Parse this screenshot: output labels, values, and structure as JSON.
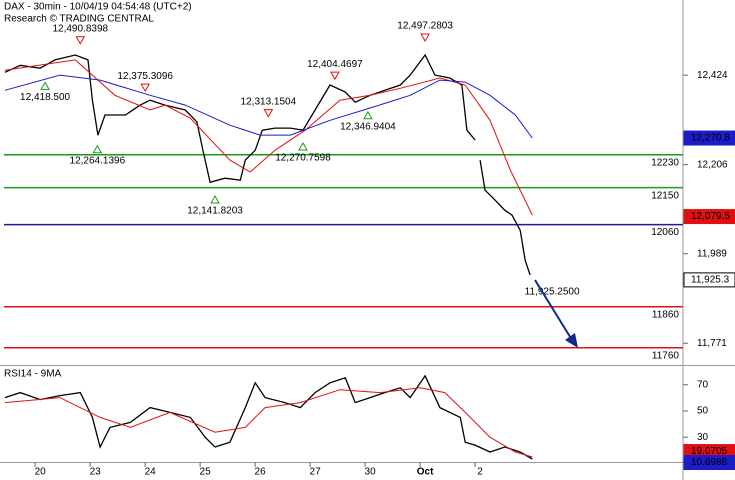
{
  "chart_data": [
    {
      "type": "line",
      "title": "DAX - 30min - 10/04/19 04:54:48 (UTC+2)",
      "subtitle": "Research © TRADING CENTRAL",
      "xlim": [
        -0.73,
        11.69
      ],
      "ylim": [
        11718,
        12607
      ],
      "yticks": [
        {
          "value": 12424,
          "label": "12,424"
        },
        {
          "value": 12206,
          "label": "12,206"
        },
        {
          "value": 11989,
          "label": "11,989"
        },
        {
          "value": 11771,
          "label": "11,771"
        }
      ],
      "series": [
        {
          "color": "#000000",
          "x": [
            -0.64,
            -0.36,
            0,
            0.27,
            0.64,
            0.87,
            0.95,
            1.05,
            1.18,
            1.55,
            1.82,
            2,
            2.27,
            2.64,
            2.85,
            2.96,
            3.09,
            3.36,
            3.64,
            3.73,
            3.91,
            4.04,
            4.27,
            4.55,
            4.78,
            5,
            5.27,
            5.55,
            5.73,
            6,
            6.27,
            6.55,
            6.73,
            7,
            7.18,
            7.45,
            7.67,
            7.76,
            7.91,
            7.95,
            8,
            8.09,
            8.27,
            8.45,
            8.58,
            8.73,
            8.82,
            8.91
          ],
          "values": [
            12431,
            12448,
            12441,
            12461,
            12473,
            12461,
            12363,
            12278,
            12327,
            12327,
            12351,
            12363,
            12351,
            12339,
            12310,
            12241,
            12163,
            12173,
            12168,
            12217,
            12241,
            12290,
            12295,
            12295,
            12290,
            12339,
            12400,
            12383,
            12358,
            12375,
            12387,
            12400,
            12424,
            12473,
            12424,
            12417,
            12400,
            12290,
            12266,
            null,
            12217,
            12144,
            12120,
            12095,
            12083,
            12046,
            11973,
            11937
          ]
        },
        {
          "color": "#e01010",
          "x": [
            -0.64,
            0.64,
            1.36,
            2,
            2.27,
            2.73,
            3.45,
            3.82,
            4.27,
            4.82,
            5.45,
            6,
            6.55,
            7.27,
            7.73,
            8.18,
            8.55,
            8.95
          ],
          "values": [
            12436,
            12461,
            12375,
            12339,
            12351,
            12319,
            12217,
            12188,
            12241,
            12290,
            12363,
            12375,
            12392,
            12417,
            12400,
            12314,
            12193,
            12083
          ]
        },
        {
          "color": "#1c1cc8",
          "x": [
            -0.64,
            0.36,
            1.09,
            2,
            2.64,
            3.45,
            4,
            4.55,
            5.27,
            6,
            6.73,
            7.27,
            7.73,
            8.18,
            8.64,
            8.95
          ],
          "values": [
            12387,
            12424,
            12412,
            12375,
            12351,
            12302,
            12278,
            12278,
            12314,
            12344,
            12375,
            12412,
            12407,
            12375,
            12327,
            12271
          ]
        }
      ],
      "levels": [
        {
          "value": 12230,
          "color": "#1a9a1a"
        },
        {
          "value": 12150,
          "color": "#1a9a1a"
        },
        {
          "value": 12060,
          "color": "#1c1c9c"
        },
        {
          "value": 11860,
          "color": "#e01010"
        },
        {
          "value": 11760,
          "color": "#e01010"
        }
      ],
      "annotations": [
        {
          "label": "12,490.8398",
          "x": 0.73,
          "value": 12490.8398,
          "marker": "high"
        },
        {
          "label": "12,418.500",
          "x": 0.09,
          "value": 12418.5,
          "marker": "low"
        },
        {
          "label": "12,375.3096",
          "x": 1.91,
          "value": 12375.3096,
          "marker": "high"
        },
        {
          "label": "12,264.1396",
          "x": 1.04,
          "value": 12264.1396,
          "marker": "low"
        },
        {
          "label": "12,313.1504",
          "x": 4.15,
          "value": 12313.1504,
          "marker": "high"
        },
        {
          "label": "12,141.8203",
          "x": 3.18,
          "value": 12141.8203,
          "marker": "low"
        },
        {
          "label": "12,270.7598",
          "x": 4.78,
          "value": 12270.7598,
          "marker": "low"
        },
        {
          "label": "12,404.4697",
          "x": 5.36,
          "value": 12404.4697,
          "marker": "high"
        },
        {
          "label": "12,346.9404",
          "x": 5.96,
          "value": 12346.9404,
          "marker": "low"
        },
        {
          "label": "12,497.2803",
          "x": 7,
          "value": 12497.2803,
          "marker": "high"
        },
        {
          "label": "11,925.2500",
          "x": 9.31,
          "value": 11925.25,
          "marker": "none"
        }
      ],
      "price_tags": [
        {
          "value": 12270.8,
          "label": "12,270.8",
          "color": "#1c1cc8"
        },
        {
          "value": 12079.5,
          "label": "12,079.5",
          "color": "#e01010"
        },
        {
          "value": 11925.3,
          "label": "11,925.3",
          "color": "#000000"
        }
      ]
    },
    {
      "type": "line",
      "title": "RSI14 - 9MA",
      "xlim": [
        -0.73,
        11.69
      ],
      "ylim": [
        11.1,
        84.3
      ],
      "yticks": [
        70,
        50,
        30
      ],
      "xticks": [
        {
          "value": 0,
          "label": "20"
        },
        {
          "value": 1,
          "label": "23"
        },
        {
          "value": 2,
          "label": "24"
        },
        {
          "value": 3,
          "label": "25"
        },
        {
          "value": 4,
          "label": "26"
        },
        {
          "value": 5,
          "label": "27"
        },
        {
          "value": 6,
          "label": "30"
        },
        {
          "value": 7,
          "label": "Oct"
        },
        {
          "value": 8,
          "label": "2"
        }
      ],
      "series": [
        {
          "color": "#000000",
          "x": [
            -0.64,
            -0.36,
            0,
            0.36,
            0.73,
            0.95,
            1.09,
            1.27,
            1.64,
            2,
            2.36,
            2.73,
            3,
            3.18,
            3.45,
            3.73,
            3.91,
            4.09,
            4.45,
            4.73,
            5,
            5.27,
            5.55,
            5.73,
            6,
            6.27,
            6.55,
            6.73,
            7,
            7.27,
            7.64,
            7.73,
            7.91,
            8.18,
            8.45,
            8.73,
            8.95
          ],
          "values": [
            60.2,
            64,
            58.7,
            61.7,
            64,
            45.1,
            22.5,
            37.5,
            41.3,
            52.6,
            48.9,
            45.1,
            30,
            22.5,
            26.2,
            52.6,
            71.5,
            60.2,
            56.4,
            52.6,
            64,
            71.5,
            75.3,
            56.4,
            60.2,
            64,
            67.7,
            60.2,
            76.8,
            52.6,
            45.1,
            26.2,
            24,
            18.7,
            22.5,
            18.7,
            13.4
          ]
        },
        {
          "color": "#e01010",
          "x": [
            -0.64,
            0.36,
            1.09,
            1.64,
            2.36,
            3.18,
            3.73,
            4.09,
            4.73,
            5.45,
            6.18,
            6.91,
            7.36,
            7.73,
            8.18,
            8.64,
            8.95
          ],
          "values": [
            56.4,
            60.2,
            45.1,
            37.5,
            48.9,
            33.8,
            37.5,
            52.6,
            56.4,
            66.2,
            64,
            67.7,
            64,
            48.9,
            30,
            18.7,
            14.9
          ]
        }
      ],
      "price_tags": [
        {
          "value": 19.0705,
          "label": "19.0705",
          "color": "#e01010"
        },
        {
          "value": 10.6988,
          "label": "10.6988",
          "color": "#1c1cc8"
        }
      ]
    }
  ]
}
